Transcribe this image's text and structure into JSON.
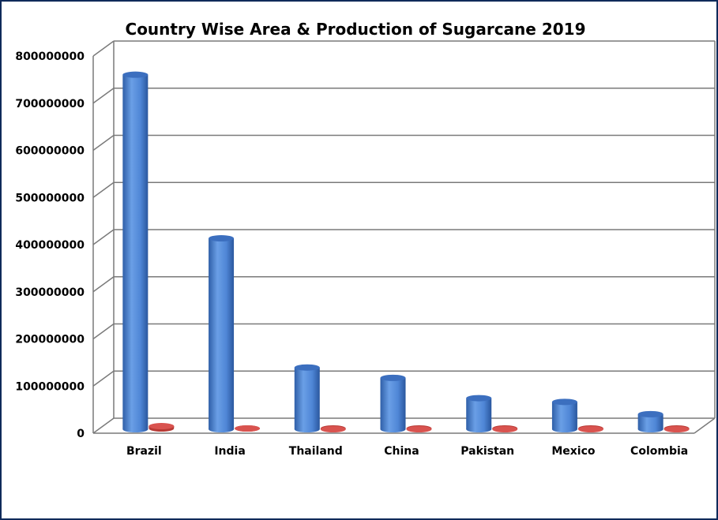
{
  "chart_data": {
    "type": "bar",
    "title": "Country Wise Area & Production of Sugarcane 2019",
    "categories": [
      "Brazil",
      "India",
      "Thailand",
      "China",
      "Pakistan",
      "Mexico",
      "Colombia"
    ],
    "series": [
      {
        "values": [
          752000000,
          405000000,
          131000000,
          109000000,
          66000000,
          58000000,
          32000000
        ],
        "color": "#4f86d6"
      },
      {
        "values": [
          10000000,
          5000000,
          2000000,
          2000000,
          1000000,
          1000000,
          1000000
        ],
        "color": "#d9534f"
      }
    ],
    "ylim": [
      0,
      800000000
    ],
    "yticks": [
      "0",
      "100000000",
      "200000000",
      "300000000",
      "400000000",
      "500000000",
      "600000000",
      "700000000",
      "800000000"
    ],
    "grid": true,
    "legend": "none",
    "style": "3d-cylinder"
  }
}
